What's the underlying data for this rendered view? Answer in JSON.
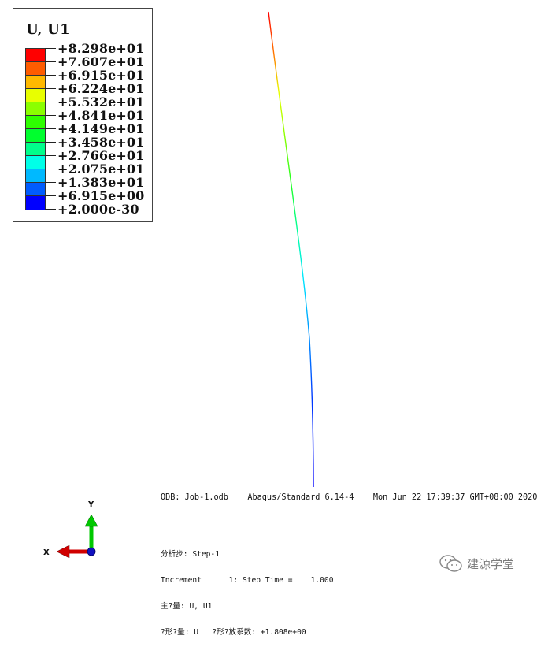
{
  "legend": {
    "title": "U, U1",
    "colors": [
      "#ff0000",
      "#ff5c00",
      "#ffb900",
      "#e8ff00",
      "#8bff00",
      "#2eff00",
      "#00ff2e",
      "#00ff8b",
      "#00ffe8",
      "#00b9ff",
      "#005cff",
      "#0000ff"
    ],
    "values": [
      "+8.298e+01",
      "+7.607e+01",
      "+6.915e+01",
      "+6.224e+01",
      "+5.532e+01",
      "+4.841e+01",
      "+4.149e+01",
      "+3.458e+01",
      "+2.766e+01",
      "+2.075e+01",
      "+1.383e+01",
      "+6.915e+00",
      "+2.000e-30"
    ]
  },
  "status": {
    "odb_line": "ODB: Job-1.odb    Abaqus/Standard 6.14-4    Mon Jun 22 17:39:37 GMT+08:00 2020",
    "step_line": "分析步: Step-1",
    "increment_line": "Increment      1: Step Time =    1.000",
    "primary_var_line": "主?量: U, U1",
    "deformed_var_line": "?形?量: U   ?形?放系数: +1.808e+00"
  },
  "triad": {
    "x_label": "X",
    "y_label": "Y"
  },
  "watermark": {
    "text": "建源学堂",
    "icon": "wechat-icon"
  }
}
